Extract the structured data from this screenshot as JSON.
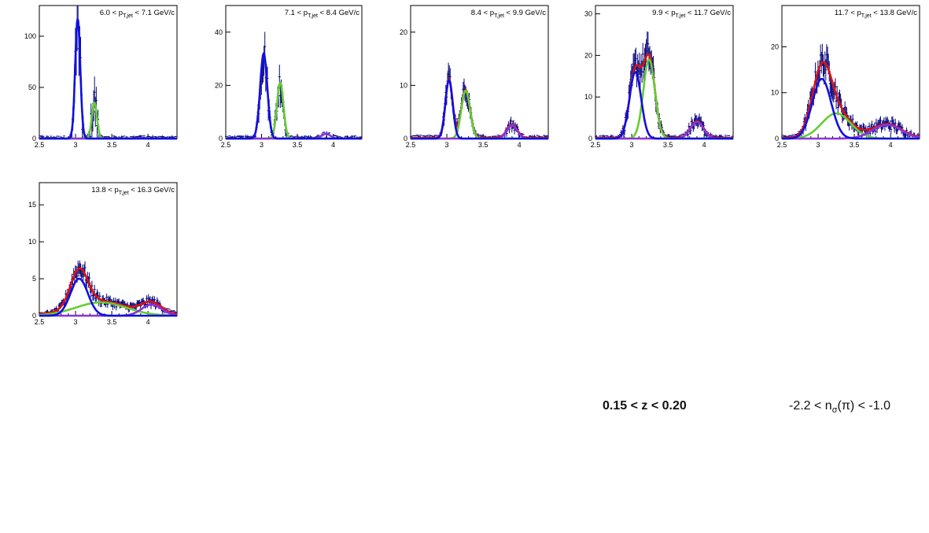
{
  "chart_data": [
    {
      "type": "line",
      "title_parts": {
        "low": "6.0",
        "high": "7.1",
        "unit": "GeV/c"
      },
      "xlim": [
        2.5,
        4.4
      ],
      "ylim": [
        0,
        130
      ],
      "xticks": [
        "2.5",
        "3",
        "3.5",
        "4"
      ],
      "yticks": [
        0,
        50,
        100
      ],
      "components": [
        {
          "color": "#1010e0",
          "mu": 3.03,
          "sigma": 0.035,
          "amp": 117
        },
        {
          "color": "#66cc33",
          "mu": 3.26,
          "sigma": 0.035,
          "amp": 35
        },
        {
          "color": "#8833dd",
          "mu": 3.9,
          "sigma": 0.06,
          "amp": 0.5
        }
      ],
      "total_visible": false
    },
    {
      "type": "line",
      "title_parts": {
        "low": "7.1",
        "high": "8.4",
        "unit": "GeV/c"
      },
      "xlim": [
        2.5,
        4.4
      ],
      "ylim": [
        0,
        50
      ],
      "xticks": [
        "2.5",
        "3",
        "3.5",
        "4"
      ],
      "yticks": [
        0,
        20,
        40
      ],
      "components": [
        {
          "color": "#1010e0",
          "mu": 3.03,
          "sigma": 0.05,
          "amp": 32
        },
        {
          "color": "#66cc33",
          "mu": 3.26,
          "sigma": 0.045,
          "amp": 21
        },
        {
          "color": "#8833dd",
          "mu": 3.9,
          "sigma": 0.06,
          "amp": 1.8
        }
      ],
      "total_visible": false
    },
    {
      "type": "line",
      "title_parts": {
        "low": "8.4",
        "high": "9.9",
        "unit": "GeV/c"
      },
      "xlim": [
        2.5,
        4.4
      ],
      "ylim": [
        0,
        25
      ],
      "xticks": [
        "2.5",
        "3",
        "3.5",
        "4"
      ],
      "yticks": [
        0,
        10,
        20
      ],
      "components": [
        {
          "color": "#1010e0",
          "mu": 3.03,
          "sigma": 0.05,
          "amp": 11
        },
        {
          "color": "#66cc33",
          "mu": 3.26,
          "sigma": 0.06,
          "amp": 9
        },
        {
          "color": "#8833dd",
          "mu": 3.9,
          "sigma": 0.07,
          "amp": 2.5
        }
      ],
      "total_visible": true
    },
    {
      "type": "line",
      "title_parts": {
        "low": "9.9",
        "high": "11.7",
        "unit": "GeV/c"
      },
      "xlim": [
        2.5,
        4.4
      ],
      "ylim": [
        0,
        32
      ],
      "xticks": [
        "2.5",
        "3",
        "3.5",
        "4"
      ],
      "yticks": [
        0,
        10,
        20,
        30
      ],
      "components": [
        {
          "color": "#1010e0",
          "mu": 3.05,
          "sigma": 0.08,
          "amp": 16
        },
        {
          "color": "#66cc33",
          "mu": 3.24,
          "sigma": 0.08,
          "amp": 19
        },
        {
          "color": "#8833dd",
          "mu": 3.9,
          "sigma": 0.09,
          "amp": 4
        }
      ],
      "total_visible": true
    },
    {
      "type": "line",
      "title_parts": {
        "low": "11.7",
        "high": "13.8",
        "unit": "GeV/c"
      },
      "xlim": [
        2.5,
        4.4
      ],
      "ylim": [
        0,
        29
      ],
      "xticks": [
        "2.5",
        "3",
        "3.5",
        "4"
      ],
      "yticks": [
        0,
        10,
        20
      ],
      "components": [
        {
          "color": "#1010e0",
          "mu": 3.05,
          "sigma": 0.13,
          "amp": 13
        },
        {
          "color": "#66cc33",
          "mu": 3.25,
          "sigma": 0.2,
          "amp": 5.5
        },
        {
          "color": "#8833dd",
          "mu": 3.95,
          "sigma": 0.2,
          "amp": 3
        }
      ],
      "total_visible": true
    },
    {
      "type": "line",
      "title_parts": {
        "low": "13.8",
        "high": "16.3",
        "unit": "GeV/c"
      },
      "xlim": [
        2.5,
        4.4
      ],
      "ylim": [
        0,
        18
      ],
      "xticks": [
        "2.5",
        "3",
        "3.5",
        "4"
      ],
      "yticks": [
        0,
        5,
        10,
        15
      ],
      "components": [
        {
          "color": "#1010e0",
          "mu": 3.05,
          "sigma": 0.12,
          "amp": 5
        },
        {
          "color": "#66cc33",
          "mu": 3.35,
          "sigma": 0.35,
          "amp": 1.8
        },
        {
          "color": "#8833dd",
          "mu": 4.05,
          "sigma": 0.14,
          "amp": 1.5
        }
      ],
      "total_visible": true
    }
  ],
  "labels": {
    "z_range": "0.15 < z < 0.20",
    "nsigma_prefix": "-2.2 < n",
    "nsigma_sub": "σ",
    "nsigma_suffix": "(π) < -1.0"
  },
  "colors": {
    "data": "#0a0a7a",
    "total": "#dd1111"
  }
}
